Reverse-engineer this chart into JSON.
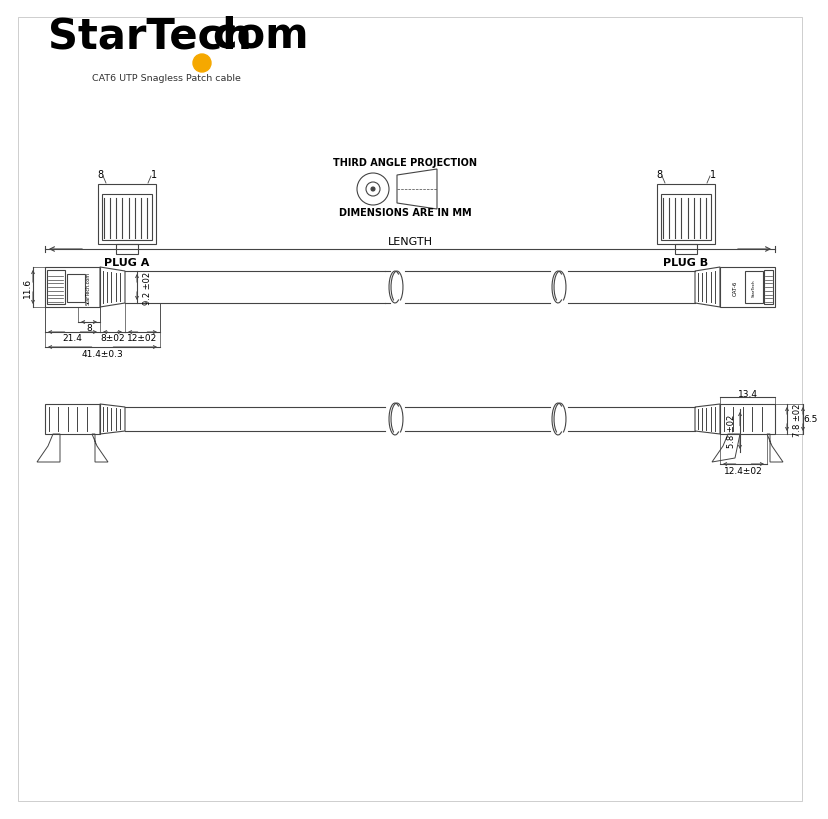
{
  "bg_color": "#ffffff",
  "line_color": "#444444",
  "text_color": "#000000",
  "logo_text1": "StarTech",
  "logo_dot_color": "#f5a800",
  "logo_text2": "com",
  "subtitle": "CAT6 UTP Snagless Patch cable",
  "plug_a_label": "PLUG A",
  "plug_b_label": "PLUG B",
  "third_angle": "THIRD ANGLE PROJECTION",
  "dim_mm": "DIMENSIONS ARE IN MM",
  "length_label": "LENGTH",
  "dims": {
    "d1": "11.6",
    "d2": "9.2 ±02",
    "d3": "8",
    "d4": "21.4",
    "d5": "8±02",
    "d6": "12±02",
    "d7": "41.4±0.3",
    "d8": "13.4",
    "d9": "7.8 ±02",
    "d10": "5.8 ±02",
    "d11": "12.4±02",
    "d12": "6.5"
  }
}
